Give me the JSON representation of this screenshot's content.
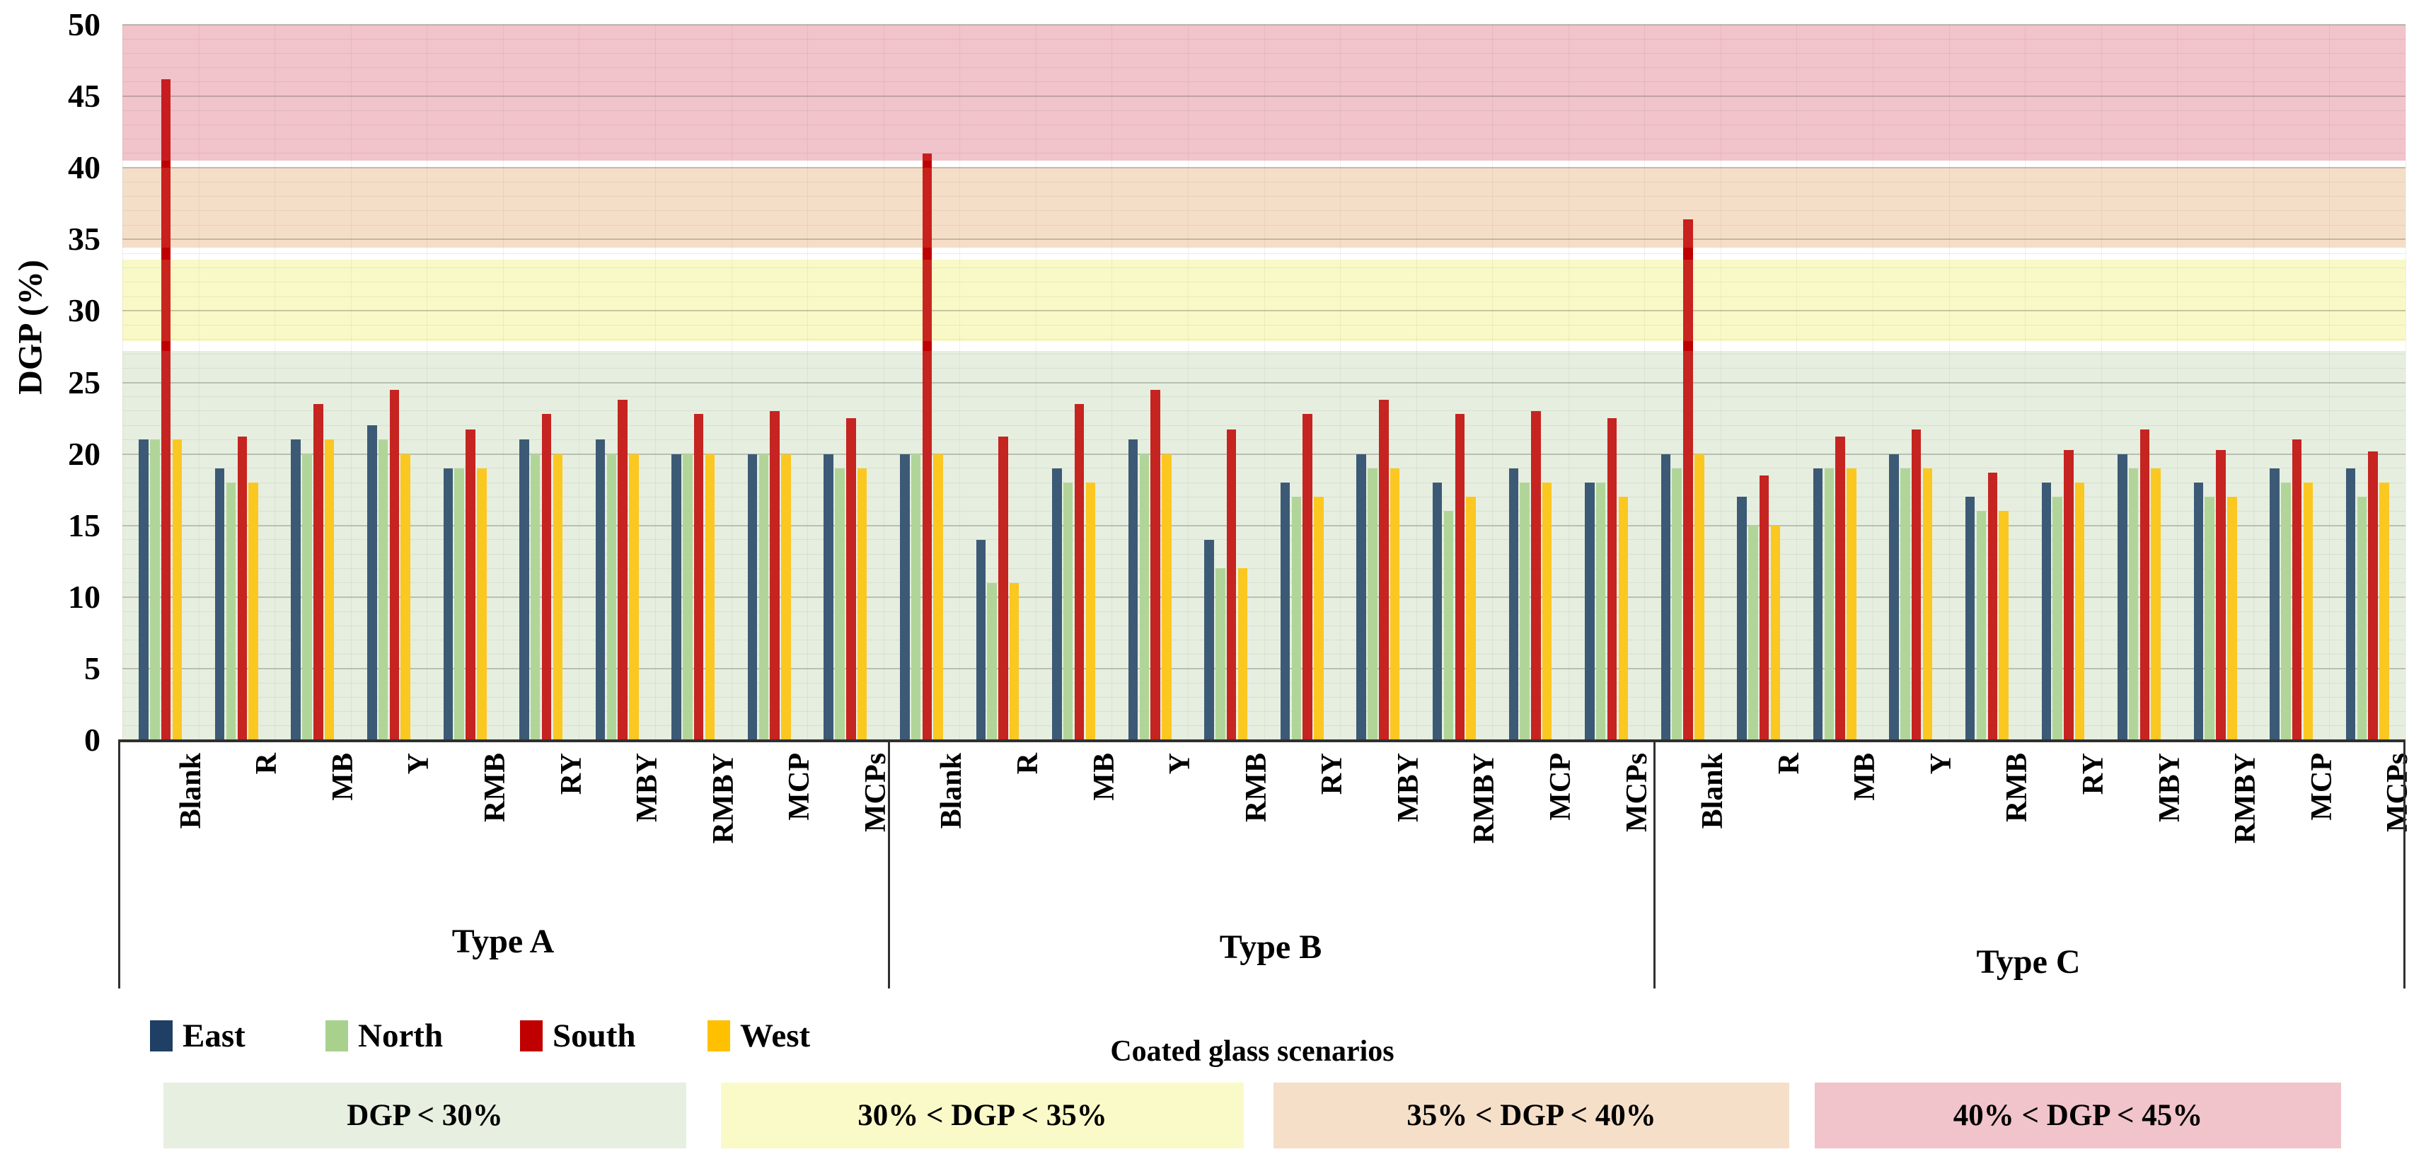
{
  "chart_data": {
    "type": "bar",
    "title": "",
    "ylabel": "DGP (%)",
    "xlabel": "Coated glass scenarios",
    "ylim": [
      0,
      50
    ],
    "ytick_step": 5,
    "grid": "minor horizontal every 1, major every 5, faint vertical per category",
    "legend_position": "bottom-left",
    "categories": [
      "Blank",
      "R",
      "MB",
      "Y",
      "RMB",
      "RY",
      "MBY",
      "RMBY",
      "MCP",
      "MCPs"
    ],
    "groups": [
      "Type A",
      "Type B",
      "Type C"
    ],
    "series_order": [
      "East",
      "North",
      "South",
      "West"
    ],
    "series_colors": {
      "East": "#1f4064",
      "North": "#a9d18e",
      "South": "#c00000",
      "West": "#ffc000"
    },
    "values": {
      "Type A": {
        "Blank": [
          21,
          21,
          46.2,
          21
        ],
        "R": [
          19,
          18,
          21.2,
          18
        ],
        "MB": [
          21,
          20,
          23.5,
          21
        ],
        "Y": [
          22,
          21,
          24.5,
          20
        ],
        "RMB": [
          19,
          19,
          21.7,
          19
        ],
        "RY": [
          21,
          20,
          22.8,
          20
        ],
        "MBY": [
          21,
          20,
          23.8,
          20
        ],
        "RMBY": [
          20,
          20,
          22.8,
          20
        ],
        "MCP": [
          20,
          20,
          23,
          20
        ],
        "MCPs": [
          20,
          19,
          22.5,
          19
        ]
      },
      "Type B": {
        "Blank": [
          20,
          20,
          41,
          20
        ],
        "R": [
          14,
          11,
          21.2,
          11
        ],
        "MB": [
          19,
          18,
          23.5,
          18
        ],
        "Y": [
          21,
          20,
          24.5,
          20
        ],
        "RMB": [
          14,
          12,
          21.7,
          12
        ],
        "RY": [
          18,
          17,
          22.8,
          17
        ],
        "MBY": [
          20,
          19,
          23.8,
          19
        ],
        "RMBY": [
          18,
          16,
          22.8,
          17
        ],
        "MCP": [
          19,
          18,
          23,
          18
        ],
        "MCPs": [
          18,
          18,
          22.5,
          17
        ]
      },
      "Type C": {
        "Blank": [
          20,
          19,
          36.4,
          20
        ],
        "R": [
          17,
          15,
          18.5,
          15
        ],
        "MB": [
          19,
          19,
          21.2,
          19
        ],
        "Y": [
          20,
          19,
          21.7,
          19
        ],
        "RMB": [
          17,
          16,
          18.7,
          16
        ],
        "RY": [
          18,
          17,
          20.3,
          18
        ],
        "MBY": [
          20,
          19,
          21.7,
          19
        ],
        "RMBY": [
          18,
          17,
          20.3,
          17
        ],
        "MCP": [
          19,
          18,
          21,
          18
        ],
        "MCPs": [
          19,
          17,
          20.2,
          18
        ]
      }
    },
    "bands": [
      {
        "label": "DGP < 30%",
        "color": "#e7efe0",
        "from": 0,
        "to": 27.2
      },
      {
        "label": "30% < DGP < 35%",
        "color": "#fafac8",
        "from": 27.9,
        "to": 33.6
      },
      {
        "label": "35% < DGP < 40%",
        "color": "#f5dfc8",
        "from": 34.4,
        "to": 40.0
      },
      {
        "label": "40% < DGP < 45%",
        "color": "#f1c3ca",
        "from": 40.5,
        "to": 50
      }
    ],
    "axis_colors": {
      "axis_line": "#2f2f2f",
      "major_grid": "rgba(100,100,90,0.40)",
      "minor_grid": "rgba(100,100,90,0.13)",
      "vertical_grid": "rgba(120,120,110,0.12)",
      "tick_text": "#000000"
    }
  }
}
